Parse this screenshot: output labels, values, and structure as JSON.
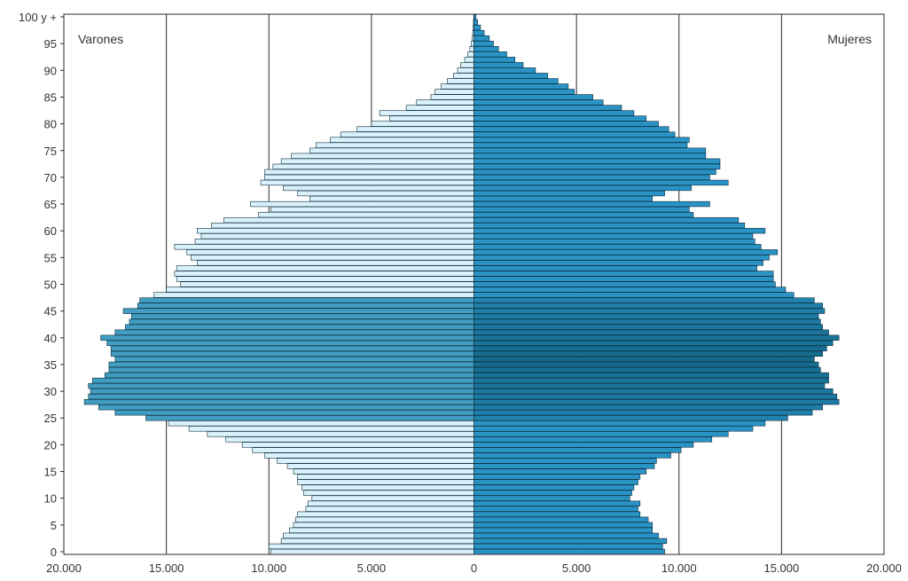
{
  "chart_data": {
    "type": "bar",
    "orientation": "horizontal",
    "subtype": "population-pyramid",
    "title": "",
    "xlabel": "",
    "ylabel": "",
    "xlim": [
      -20000,
      20000
    ],
    "x_tick_values": [
      -20000,
      -15000,
      -10000,
      -5000,
      0,
      5000,
      10000,
      15000,
      20000
    ],
    "x_tick_labels": [
      "20.000",
      "15.000",
      "10.000",
      "5.000",
      "0",
      "5.000",
      "10.000",
      "15.000",
      "20.000"
    ],
    "y_tick_values": [
      0,
      5,
      10,
      15,
      20,
      25,
      30,
      35,
      40,
      45,
      50,
      55,
      60,
      65,
      70,
      75,
      80,
      85,
      90,
      95,
      100
    ],
    "y_tick_labels": [
      "0",
      "5",
      "10",
      "15",
      "20",
      "25",
      "30",
      "35",
      "40",
      "45",
      "50",
      "55",
      "60",
      "65",
      "70",
      "75",
      "80",
      "85",
      "90",
      "95",
      "100 y +"
    ],
    "grid": "vertical lines at every x tick",
    "ages": [
      0,
      1,
      2,
      3,
      4,
      5,
      6,
      7,
      8,
      9,
      10,
      11,
      12,
      13,
      14,
      15,
      16,
      17,
      18,
      19,
      20,
      21,
      22,
      23,
      24,
      25,
      26,
      27,
      28,
      29,
      30,
      31,
      32,
      33,
      34,
      35,
      36,
      37,
      38,
      39,
      40,
      41,
      42,
      43,
      44,
      45,
      46,
      47,
      48,
      49,
      50,
      51,
      52,
      53,
      54,
      55,
      56,
      57,
      58,
      59,
      60,
      61,
      62,
      63,
      64,
      65,
      66,
      67,
      68,
      69,
      70,
      71,
      72,
      73,
      74,
      75,
      76,
      77,
      78,
      79,
      80,
      81,
      82,
      83,
      84,
      85,
      86,
      87,
      88,
      89,
      90,
      91,
      92,
      93,
      94,
      95,
      96,
      97,
      98,
      99,
      100
    ],
    "series": [
      {
        "name": "Varones",
        "color": "#5bc0e6",
        "values": [
          9900,
          10000,
          9400,
          9300,
          9000,
          8800,
          8700,
          8600,
          8200,
          8100,
          7900,
          8300,
          8400,
          8600,
          8600,
          8800,
          9100,
          9600,
          10200,
          10800,
          11300,
          12100,
          13000,
          13900,
          14900,
          16000,
          17500,
          18300,
          19000,
          18800,
          18700,
          18800,
          18600,
          18000,
          17800,
          17800,
          17500,
          17700,
          17700,
          17900,
          18200,
          17500,
          17000,
          16800,
          16700,
          17100,
          16400,
          16300,
          15600,
          15000,
          14300,
          14500,
          14600,
          14500,
          13500,
          13800,
          14000,
          14600,
          13600,
          13300,
          13500,
          12800,
          12200,
          10500,
          9900,
          10900,
          8000,
          8600,
          9300,
          10400,
          10200,
          10200,
          9800,
          9400,
          8900,
          8000,
          7700,
          7000,
          6500,
          5700,
          5000,
          4100,
          4600,
          3300,
          2800,
          2100,
          1900,
          1600,
          1300,
          1000,
          800,
          650,
          450,
          300,
          200,
          130,
          90,
          60,
          40,
          25,
          15
        ]
      },
      {
        "name": "Mujeres",
        "color": "#2a93c6",
        "values": [
          9300,
          9200,
          9400,
          9000,
          8700,
          8700,
          8500,
          8100,
          8000,
          8100,
          7600,
          7700,
          7800,
          8000,
          8100,
          8400,
          8800,
          8900,
          9600,
          10100,
          10700,
          11600,
          12400,
          13600,
          14200,
          15300,
          16500,
          17000,
          17800,
          17700,
          17500,
          17100,
          17300,
          17300,
          16900,
          16800,
          16600,
          17000,
          17200,
          17500,
          17800,
          17300,
          17000,
          16900,
          16800,
          17100,
          17000,
          16600,
          15600,
          15200,
          14700,
          14600,
          14600,
          13800,
          14100,
          14400,
          14800,
          14000,
          13700,
          13600,
          14200,
          13200,
          12900,
          10700,
          10500,
          11500,
          8700,
          9300,
          10600,
          12400,
          11500,
          11800,
          12000,
          12000,
          11300,
          11300,
          10400,
          10500,
          9800,
          9500,
          9000,
          8400,
          7800,
          7200,
          6300,
          5800,
          4900,
          4600,
          4100,
          3600,
          3000,
          2400,
          2000,
          1600,
          1200,
          950,
          750,
          500,
          320,
          180,
          100
        ]
      }
    ],
    "colors": {
      "shade_light": "#d9f1fb",
      "shade_mid": "#4ab8e2",
      "shade_dark": "#10607f",
      "bar_border": "#0d2c3a",
      "grid": "#2b2b2b"
    }
  }
}
